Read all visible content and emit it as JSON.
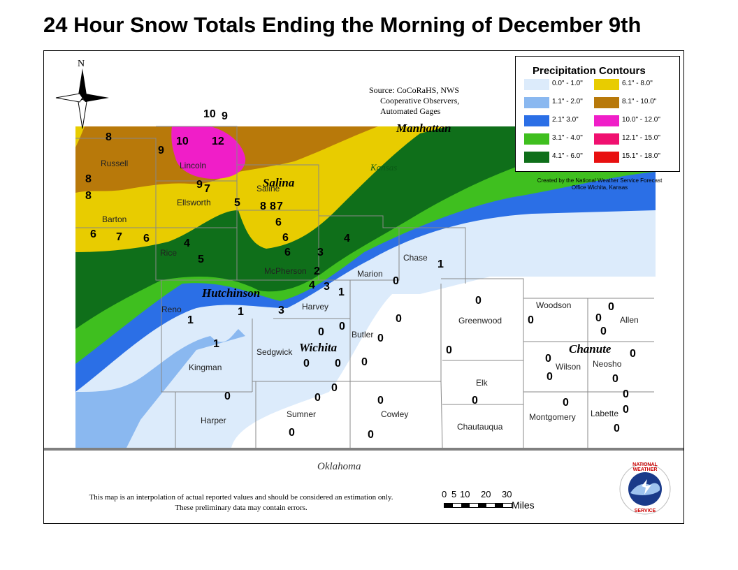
{
  "title": "24 Hour Snow Totals Ending the Morning of December 9th",
  "north_label": "N",
  "source": [
    "Source: CoCoRaHS, NWS",
    "Cooperative Observers,",
    "Automated Gages"
  ],
  "legend": {
    "title": "Precipitation Contours",
    "items": [
      {
        "label": "0.0\" - 1.0\"",
        "color": "#dcebfb"
      },
      {
        "label": "1.1\" - 2.0\"",
        "color": "#8ab8f0"
      },
      {
        "label": "2.1\" 3.0\"",
        "color": "#2b6fe6"
      },
      {
        "label": "3.1\" - 4.0\"",
        "color": "#3fbf1f"
      },
      {
        "label": "4.1\" - 6.0\"",
        "color": "#0f6f1a"
      },
      {
        "label": "6.1\" - 8.0\"",
        "color": "#e8cc00"
      },
      {
        "label": "8.1\" - 10.0\"",
        "color": "#b8790a"
      },
      {
        "label": "10.0\" - 12.0\"",
        "color": "#f01ec8"
      },
      {
        "label": "12.1\" - 15.0\"",
        "color": "#f01070"
      },
      {
        "label": "15.1\" - 18.0\"",
        "color": "#e81010"
      }
    ]
  },
  "credit": [
    "Created by the National Weather Service Forecast",
    "Office Wichita, Kansas"
  ],
  "cities": {
    "manhattan": "Manhattan",
    "salina": "Salina",
    "hutchinson": "Hutchinson",
    "wichita": "Wichita",
    "chanute": "Chanute",
    "kansas": "Kansas"
  },
  "counties": {
    "russell": "Russell",
    "lincoln": "Lincoln",
    "saline": "Saline",
    "ellsworth": "Ellsworth",
    "barton": "Barton",
    "rice": "Rice",
    "mcpherson": "McPherson",
    "marion": "Marion",
    "chase": "Chase",
    "reno": "Reno",
    "harvey": "Harvey",
    "butler": "Butler",
    "greenwood": "Greenwood",
    "woodson": "Woodson",
    "allen": "Allen",
    "kingman": "Kingman",
    "sedgwick": "Sedgwick",
    "wilson": "Wilson",
    "neosho": "Neosho",
    "elk": "Elk",
    "harper": "Harper",
    "sumner": "Sumner",
    "cowley": "Cowley",
    "montgomery": "Montgomery",
    "labette": "Labette",
    "chautauqua": "Chautauqua"
  },
  "oklahoma": "Oklahoma",
  "disclaimer": [
    "This map is an interpolation of actual reported values and should be considered an estimation only.",
    "These preliminary data may contain errors."
  ],
  "scale": {
    "ticks": [
      "0",
      "5",
      "10",
      "20",
      "30"
    ],
    "unit": "Miles"
  },
  "nws_logo": {
    "top": "NATIONAL WEATHER",
    "bottom": "SERVICE"
  },
  "snow_values": [
    "10",
    "9",
    "8",
    "9",
    "10",
    "12",
    "8",
    "8",
    "9",
    "7",
    "5",
    "8",
    "8",
    "7",
    "6",
    "6",
    "6",
    "7",
    "6",
    "6",
    "4",
    "5",
    "4",
    "3",
    "2",
    "1",
    "4",
    "3",
    "1",
    "3",
    "1",
    "1",
    "1",
    "0",
    "0",
    "0",
    "0",
    "0",
    "0",
    "0",
    "0",
    "0",
    "0",
    "0",
    "0",
    "0",
    "0",
    "0",
    "0",
    "0",
    "0",
    "0",
    "0",
    "0",
    "0",
    "0",
    "0",
    "0",
    "0",
    "0",
    "0",
    "0"
  ]
}
